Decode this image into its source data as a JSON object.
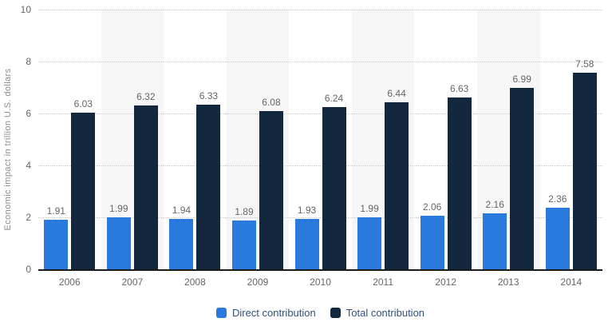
{
  "chart_data": {
    "type": "bar",
    "title": "",
    "xlabel": "",
    "ylabel": "Economic impact in trillion U.S. dollars",
    "ylim": [
      0,
      10
    ],
    "yticks": [
      0,
      2,
      4,
      6,
      8,
      10
    ],
    "grid": "horizontal-dotted",
    "legend_position": "bottom-center",
    "categories": [
      "2006",
      "2007",
      "2008",
      "2009",
      "2010",
      "2011",
      "2012",
      "2013",
      "2014"
    ],
    "series": [
      {
        "name": "Direct contribution",
        "color": "#2a79dc",
        "values": [
          1.91,
          1.99,
          1.94,
          1.89,
          1.93,
          1.99,
          2.06,
          2.16,
          2.36
        ]
      },
      {
        "name": "Total contribution",
        "color": "#13283f",
        "values": [
          6.03,
          6.32,
          6.33,
          6.08,
          6.24,
          6.44,
          6.63,
          6.99,
          7.58
        ]
      }
    ],
    "value_label_decimals": 2,
    "banded_category_indices": [
      1,
      3,
      5,
      7
    ],
    "band_color": "#f6f6f6",
    "colors": {
      "gridline": "#c9c9c9",
      "baseline": "#1a1a1a",
      "axis_text": "#666666",
      "y_title_text": "#8c8c8c",
      "legend_text": "#33517c",
      "background": "#ffffff"
    }
  }
}
